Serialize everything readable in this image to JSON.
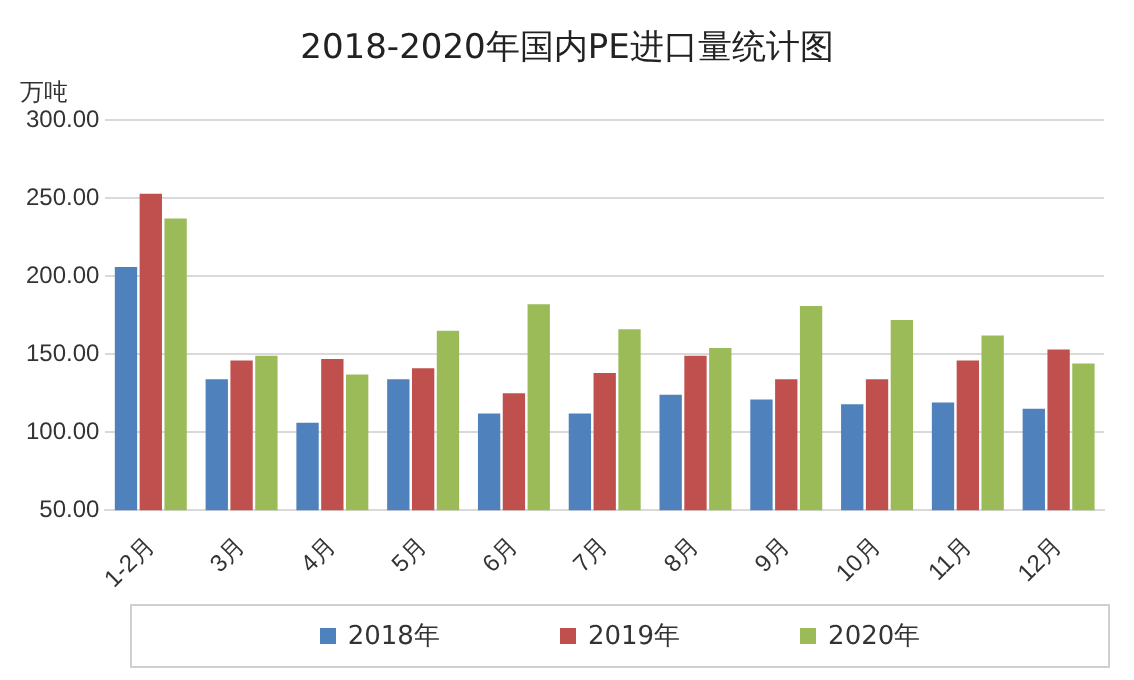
{
  "chart_data": {
    "type": "bar",
    "title": "2018-2020年国内PE进口量统计图",
    "ylabel": "万吨",
    "categories": [
      "1-2月",
      "3月",
      "4月",
      "5月",
      "6月",
      "7月",
      "8月",
      "9月",
      "10月",
      "11月",
      "12月"
    ],
    "series": [
      {
        "name": "2018年",
        "color": "#4f81bd",
        "values": [
          206,
          134,
          106,
          134,
          112,
          112,
          124,
          121,
          118,
          119,
          115
        ]
      },
      {
        "name": "2019年",
        "color": "#c0504d",
        "values": [
          253,
          146,
          147,
          141,
          125,
          138,
          149,
          134,
          134,
          146,
          153
        ]
      },
      {
        "name": "2020年",
        "color": "#9bbb59",
        "values": [
          237,
          149,
          137,
          165,
          182,
          166,
          154,
          181,
          172,
          162,
          144
        ]
      }
    ],
    "ylim": [
      50,
      300
    ],
    "yticks": [
      {
        "value": 50,
        "label": "50.00"
      },
      {
        "value": 100,
        "label": "100.00"
      },
      {
        "value": 150,
        "label": "150.00"
      },
      {
        "value": 200,
        "label": "200.00"
      },
      {
        "value": 250,
        "label": "250.00"
      },
      {
        "value": 300,
        "label": "300.00"
      }
    ],
    "grid": "y",
    "legend": "bottom"
  }
}
